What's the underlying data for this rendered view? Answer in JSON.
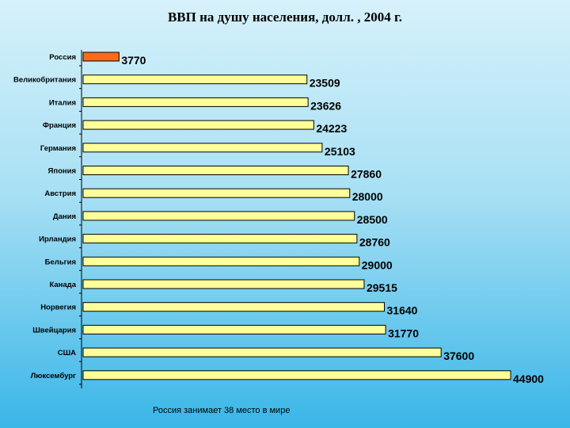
{
  "colors": {
    "bar": "#ffff99",
    "highlight": "#ff6a1a",
    "stroke": "#000000"
  },
  "chart_data": {
    "type": "bar",
    "orientation": "horizontal",
    "title": "ВВП на душу населения, долл. , 2004 г.",
    "categories": [
      "Россия",
      "Великобритания",
      "Италия",
      "Франция",
      "Германия",
      "Япония",
      "Австрия",
      "Дания",
      "Ирландия",
      "Бельгия",
      "Канада",
      "Норвегия",
      "Швейцария",
      "США",
      "Люксембург"
    ],
    "values": [
      3770,
      23509,
      23626,
      24223,
      25103,
      27860,
      28000,
      28500,
      28760,
      29000,
      29515,
      31640,
      31770,
      37600,
      44900
    ],
    "highlight_category": "Россия",
    "xlim": [
      0,
      44900
    ],
    "grid": false,
    "legend": "none"
  },
  "footnote": "Россия занимает 38 место в мире"
}
